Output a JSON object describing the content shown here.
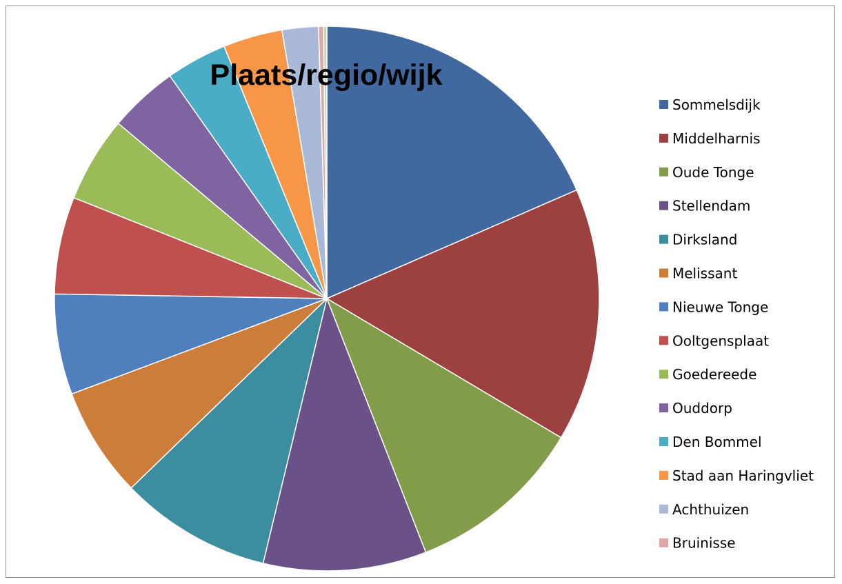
{
  "chart_data": {
    "type": "pie",
    "title": "Plaats/regio/wijk",
    "legend_position": "right",
    "slices": [
      {
        "label": "Sommelsdijk",
        "value": 18.9,
        "color": "#4169A0"
      },
      {
        "label": "Middelharnis",
        "value": 15.4,
        "color": "#9C4040"
      },
      {
        "label": "Oude Tonge",
        "value": 10.8,
        "color": "#829C4A"
      },
      {
        "label": "Stellendam",
        "value": 9.9,
        "color": "#6A5289"
      },
      {
        "label": "Dirksland",
        "value": 9.2,
        "color": "#3D8DA1"
      },
      {
        "label": "Melissant",
        "value": 6.7,
        "color": "#CD7D3A"
      },
      {
        "label": "Nieuwe Tonge",
        "value": 6.1,
        "color": "#4F80BD"
      },
      {
        "label": "Ooltgensplaat",
        "value": 5.9,
        "color": "#C0504D"
      },
      {
        "label": "Goedereede",
        "value": 5.2,
        "color": "#9BBB59"
      },
      {
        "label": "Ouddorp",
        "value": 4.2,
        "color": "#8064A2"
      },
      {
        "label": "Den Bommel",
        "value": 3.7,
        "color": "#4BACC6"
      },
      {
        "label": "Stad aan Haringvliet",
        "value": 3.6,
        "color": "#F79646"
      },
      {
        "label": "Achthuizen",
        "value": 2.2,
        "color": "#AAB9D8"
      },
      {
        "label": "Bruinisse",
        "value": 0.3,
        "color": "#DCA9A8"
      },
      {
        "label": "",
        "value": 0.2,
        "color": "#C8D6A9"
      }
    ]
  }
}
